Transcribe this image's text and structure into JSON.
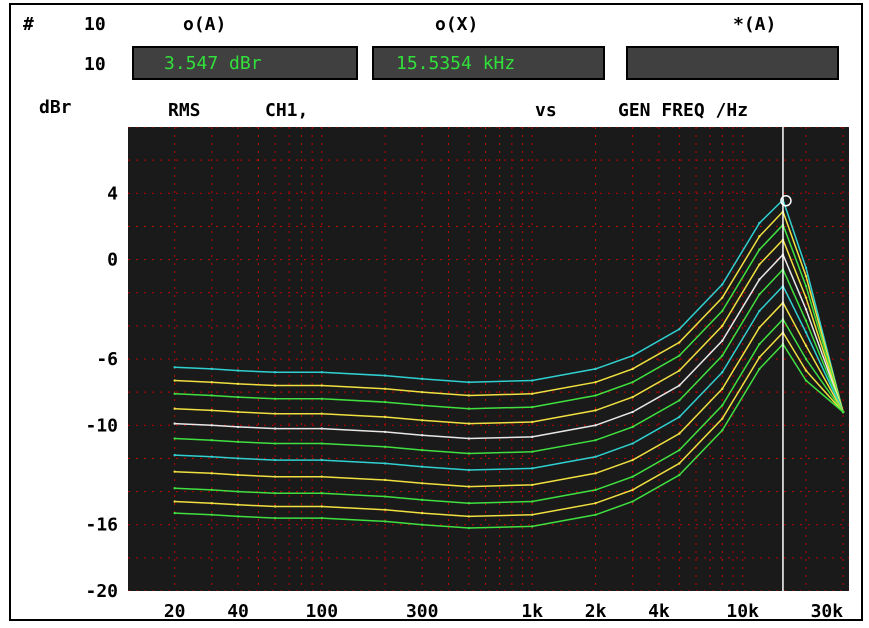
{
  "header": {
    "hash": "#",
    "hash_value": "10",
    "row2_value": "10",
    "col_a_title": "o(A)",
    "col_x_title": "o(X)",
    "col_star_title": "*(A)",
    "reading_a": "3.547 dBr",
    "reading_x": "15.5354 kHz",
    "reading_star": ""
  },
  "axis_text": {
    "unit": "dBr",
    "measure": "RMS",
    "channel": "CH1,",
    "vs": "vs",
    "x_label": "GEN FREQ /Hz"
  },
  "chart_data": {
    "type": "line",
    "title": "",
    "ylabel": "dBr",
    "xlabel": "GEN FREQ /Hz",
    "x_scale": "log",
    "xlim": [
      12,
      32000
    ],
    "ylim": [
      -20,
      8
    ],
    "grid": true,
    "y_ticks": [
      4,
      0,
      -6,
      -10,
      -16,
      -20
    ],
    "y_tick_labels": [
      "4",
      "0",
      "-6",
      "-10",
      "-16",
      "-20"
    ],
    "x_ticks": [
      20,
      40,
      100,
      300,
      1000,
      2000,
      4000,
      10000,
      30000
    ],
    "x_tick_labels": [
      "20",
      "40",
      "100",
      "300",
      "1k",
      "2k",
      "4k",
      "10k",
      "30k"
    ],
    "cursor_x": 15535.4,
    "cursor_y": 3.547,
    "colors": {
      "background": "#1a1a1a",
      "grid": "#c00000",
      "cursor": "#ffffff",
      "cyan": "#30d0d0",
      "yellow": "#f0e040",
      "green": "#40e040",
      "white": "#e8e8e8"
    },
    "x": [
      20,
      30,
      40,
      60,
      100,
      200,
      300,
      500,
      1000,
      2000,
      3000,
      5000,
      8000,
      12000,
      15535,
      20000,
      30000
    ],
    "series": [
      {
        "color": "cyan",
        "values": [
          -6.5,
          -6.6,
          -6.7,
          -6.8,
          -6.8,
          -7.0,
          -7.2,
          -7.4,
          -7.3,
          -6.6,
          -5.8,
          -4.2,
          -1.5,
          2.2,
          3.6,
          -0.5,
          -9.2
        ]
      },
      {
        "color": "yellow",
        "values": [
          -7.3,
          -7.4,
          -7.5,
          -7.6,
          -7.6,
          -7.8,
          -8.0,
          -8.2,
          -8.1,
          -7.4,
          -6.6,
          -5.0,
          -2.3,
          1.4,
          2.9,
          -1.0,
          -9.2
        ]
      },
      {
        "color": "green",
        "values": [
          -8.1,
          -8.2,
          -8.3,
          -8.4,
          -8.4,
          -8.6,
          -8.8,
          -9.0,
          -8.9,
          -8.2,
          -7.4,
          -5.8,
          -3.1,
          0.6,
          2.1,
          -1.6,
          -9.2
        ]
      },
      {
        "color": "yellow",
        "values": [
          -9.0,
          -9.1,
          -9.2,
          -9.3,
          -9.3,
          -9.5,
          -9.7,
          -9.9,
          -9.8,
          -9.1,
          -8.3,
          -6.7,
          -4.0,
          -0.3,
          1.2,
          -2.3,
          -9.2
        ]
      },
      {
        "color": "white",
        "values": [
          -9.9,
          -10.0,
          -10.1,
          -10.2,
          -10.2,
          -10.4,
          -10.6,
          -10.8,
          -10.7,
          -10.0,
          -9.2,
          -7.6,
          -4.9,
          -1.2,
          0.3,
          -3.0,
          -9.2
        ]
      },
      {
        "color": "green",
        "values": [
          -10.8,
          -10.9,
          -11.0,
          -11.1,
          -11.1,
          -11.3,
          -11.5,
          -11.7,
          -11.6,
          -10.9,
          -10.1,
          -8.5,
          -5.8,
          -2.1,
          -0.6,
          -3.7,
          -9.2
        ]
      },
      {
        "color": "cyan",
        "values": [
          -11.8,
          -11.9,
          -12.0,
          -12.1,
          -12.1,
          -12.3,
          -12.5,
          -12.7,
          -12.6,
          -11.9,
          -11.1,
          -9.5,
          -6.8,
          -3.1,
          -1.6,
          -4.4,
          -9.2
        ]
      },
      {
        "color": "yellow",
        "values": [
          -12.8,
          -12.9,
          -13.0,
          -13.1,
          -13.1,
          -13.3,
          -13.5,
          -13.7,
          -13.6,
          -12.9,
          -12.1,
          -10.5,
          -7.8,
          -4.1,
          -2.6,
          -5.2,
          -9.2
        ]
      },
      {
        "color": "green",
        "values": [
          -13.8,
          -13.9,
          -14.0,
          -14.1,
          -14.1,
          -14.3,
          -14.5,
          -14.7,
          -14.6,
          -13.9,
          -13.1,
          -11.5,
          -8.8,
          -5.1,
          -3.6,
          -6.0,
          -9.2
        ]
      },
      {
        "color": "yellow",
        "values": [
          -14.6,
          -14.7,
          -14.8,
          -14.9,
          -14.9,
          -15.1,
          -15.3,
          -15.5,
          -15.4,
          -14.7,
          -13.9,
          -12.3,
          -9.6,
          -5.9,
          -4.4,
          -6.7,
          -9.2
        ]
      },
      {
        "color": "green",
        "values": [
          -15.3,
          -15.4,
          -15.5,
          -15.6,
          -15.6,
          -15.8,
          -16.0,
          -16.2,
          -16.1,
          -15.4,
          -14.6,
          -13.0,
          -10.3,
          -6.6,
          -5.1,
          -7.3,
          -9.2
        ]
      }
    ]
  }
}
